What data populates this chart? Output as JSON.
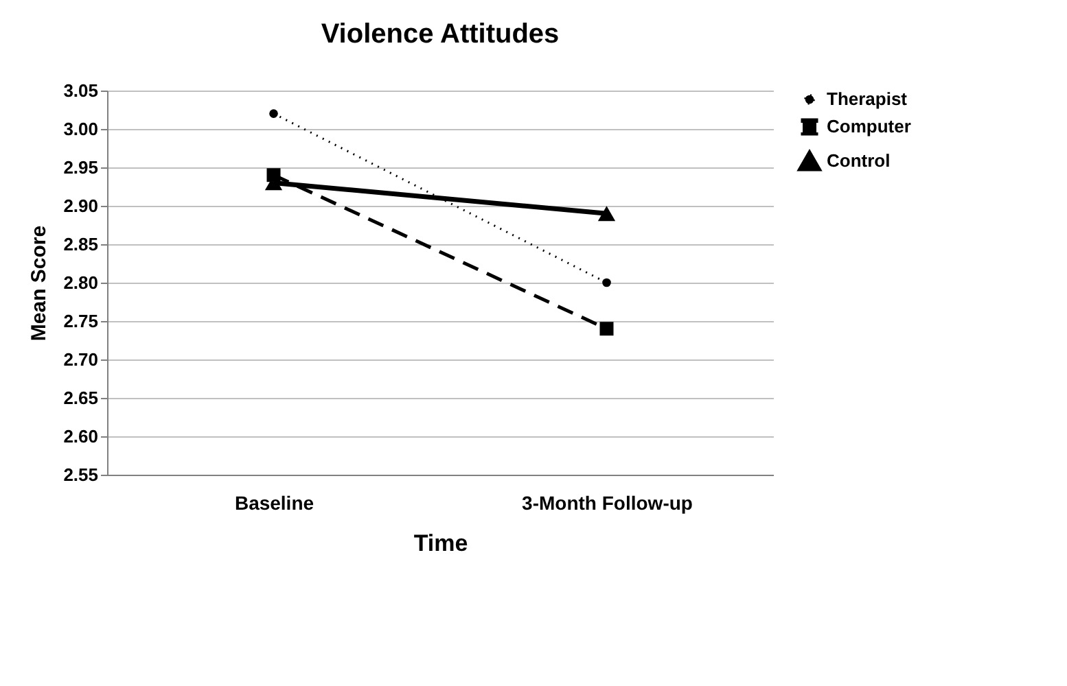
{
  "chart_data": {
    "type": "line",
    "title": "Violence Attitudes",
    "xlabel": "Time",
    "ylabel": "Mean Score",
    "categories": [
      "Baseline",
      "3-Month Follow-up"
    ],
    "series": [
      {
        "name": "Therapist",
        "color": "#000000",
        "values": [
          3.02,
          2.8
        ],
        "marker": "circle",
        "line_style": "dotted"
      },
      {
        "name": "Computer",
        "color": "#000000",
        "values": [
          2.94,
          2.74
        ],
        "marker": "square",
        "line_style": "dashed"
      },
      {
        "name": "Control",
        "color": "#000000",
        "values": [
          2.93,
          2.89
        ],
        "marker": "triangle",
        "line_style": "solid"
      }
    ],
    "ylim": [
      2.55,
      3.05
    ],
    "yticks": [
      2.55,
      {
        "value": 2.6,
        "label": "2.60"
      },
      2.65,
      {
        "value": 2.7,
        "label": "2.70"
      },
      2.75,
      {
        "value": 2.8,
        "label": "2.80"
      },
      2.85,
      {
        "value": 2.9,
        "label": "2.90"
      },
      2.95,
      {
        "value": 3.0,
        "label": "3.00"
      },
      3.05
    ],
    "grid": "y",
    "legend": "right"
  }
}
